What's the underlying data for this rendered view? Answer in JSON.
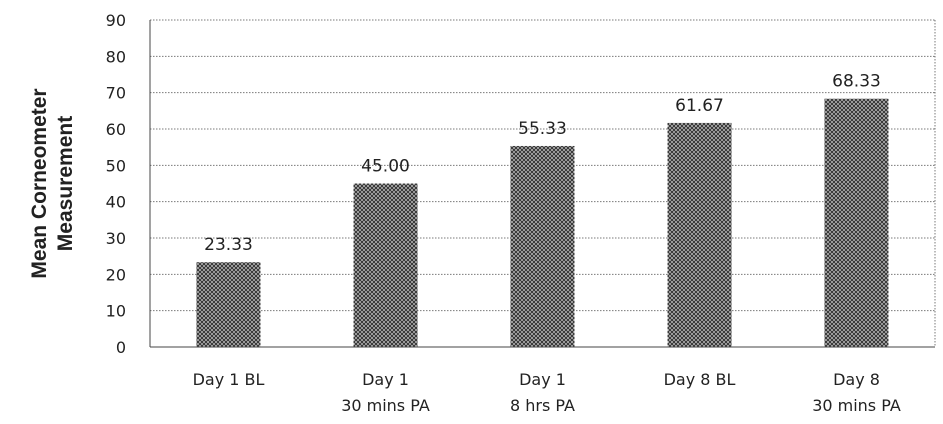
{
  "chart_data": {
    "type": "bar",
    "title": "",
    "xlabel": "",
    "ylabel": [
      "Mean Corneometer",
      "Measurement"
    ],
    "categories": [
      [
        "Day 1 BL"
      ],
      [
        "Day 1",
        "30 mins PA"
      ],
      [
        "Day 1",
        "8 hrs PA"
      ],
      [
        "Day 8 BL"
      ],
      [
        "Day 8",
        "30 mins PA"
      ]
    ],
    "values": [
      23.33,
      45.0,
      55.33,
      61.67,
      68.33
    ],
    "data_labels": [
      "23.33",
      "45.00",
      "55.33",
      "61.67",
      "68.33"
    ],
    "ylim": [
      0,
      90
    ],
    "y_ticks": [
      0,
      10,
      20,
      30,
      40,
      50,
      60,
      70,
      80,
      90
    ],
    "grid": true,
    "grid_style": "dotted",
    "legend": "none",
    "bar_fill": "crosshatch",
    "colors": {
      "bar_dark": "#3a3a3a",
      "bar_light": "#d8d8d8",
      "grid": "#7a7a7a",
      "axis": "#444444",
      "text": "#222222"
    }
  }
}
